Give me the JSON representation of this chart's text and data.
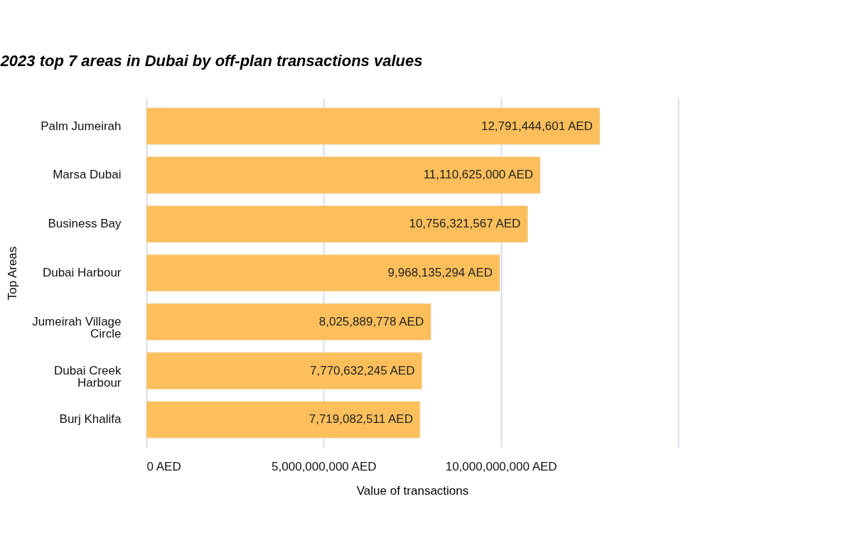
{
  "chart_data": {
    "type": "bar",
    "orientation": "horizontal",
    "title": "2023 top 7 areas in Dubai by off-plan transactions values",
    "xlabel": "Value of transactions",
    "ylabel": "Top Areas",
    "categories": [
      "Palm Jumeirah",
      "Marsa Dubai",
      "Business Bay",
      "Dubai Harbour",
      "Jumeirah Village Circle",
      "Dubai Creek Harbour",
      "Burj Khalifa"
    ],
    "values": [
      12791444601,
      11110625000,
      10756321567,
      9968135294,
      8025889778,
      7770632245,
      7719082511
    ],
    "value_labels": [
      "12,791,444,601 AED",
      "11,110,625,000 AED",
      "10,756,321,567 AED",
      "9,968,135,294 AED",
      "8,025,889,778 AED",
      "7,770,632,245 AED",
      "7,719,082,511 AED"
    ],
    "color": "#fdbf5b",
    "xlim": [
      0,
      15000000000
    ],
    "xticks": [
      {
        "value": 0,
        "label": "0 AED"
      },
      {
        "value": 5000000000,
        "label": "5,000,000,000 AED"
      },
      {
        "value": 10000000000,
        "label": "10,000,000,000 AED"
      },
      {
        "value": 15000000000,
        "label": null
      }
    ],
    "grid": "x"
  }
}
